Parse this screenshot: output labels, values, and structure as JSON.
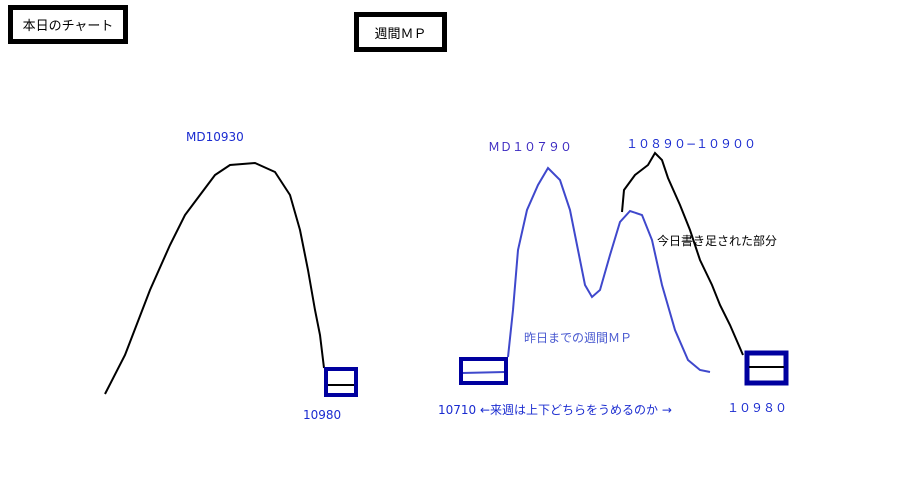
{
  "titles": {
    "today_chart": "本日のチャート",
    "weekly_mp": "週間ＭＰ"
  },
  "left_chart": {
    "md_label": "MD10930",
    "low_label": "10980"
  },
  "right_chart": {
    "md_label": "ＭＤ１０７９０",
    "peak_range_label": "１０８９０−１０９００",
    "added_today_label": "今日書き足された部分",
    "until_yesterday_label": "昨日までの週間ＭＰ",
    "bottom_note": "10710 ←来週は上下どちらをうめるのか →",
    "right_low_label": "１０９８０"
  },
  "colors": {
    "today_line": "#000000",
    "yesterday_line": "#3f48cc",
    "box": "#00009f",
    "text_blue": "#1a2bd0"
  }
}
